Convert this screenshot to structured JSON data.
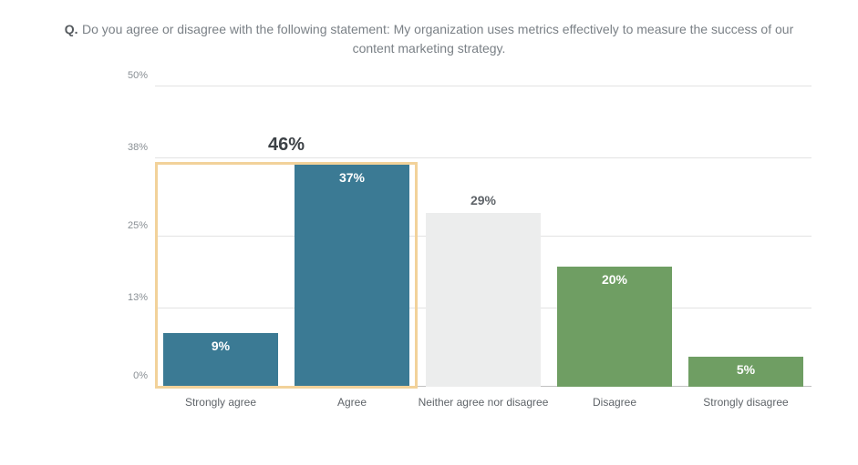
{
  "title": {
    "prefix": "Q.",
    "text": "Do you agree or disagree with the following statement: My organization uses metrics effectively to measure the success of our content marketing strategy."
  },
  "chart": {
    "type": "bar",
    "ymax": 50,
    "ytick_step": "irregular",
    "yticks": [
      0,
      13,
      25,
      38,
      50
    ],
    "ytick_labels": [
      "0%",
      "13%",
      "25%",
      "38%",
      "50%"
    ],
    "categories": [
      "Strongly agree",
      "Agree",
      "Neither agree nor disagree",
      "Disagree",
      "Strongly disagree"
    ],
    "values": [
      9,
      37,
      29,
      20,
      5
    ],
    "value_labels": [
      "9%",
      "37%",
      "29%",
      "20%",
      "5%"
    ],
    "bar_colors": [
      "#3b7a94",
      "#3b7a94",
      "#eceded",
      "#6f9e63",
      "#6f9e63"
    ],
    "bar_label_colors": [
      "#ffffff",
      "#ffffff",
      "#5f6469",
      "#ffffff",
      "#ffffff"
    ],
    "bar_label_position": [
      "inside",
      "inside",
      "above",
      "inside",
      "inside"
    ],
    "highlight": {
      "start_index": 0,
      "end_index": 1,
      "sum_label": "46%",
      "border_color": "#f2d29a",
      "label_color": "#3c4146",
      "label_fontsize": 20
    },
    "axis_label_color": "#898f94",
    "axis_label_fontsize": 11,
    "category_label_color": "#5f6469",
    "category_label_fontsize": 12,
    "grid_color": "#e3e3e3",
    "baseline_color": "#bfbfbf",
    "background_color": "#ffffff",
    "bar_width_ratio": 0.88
  }
}
